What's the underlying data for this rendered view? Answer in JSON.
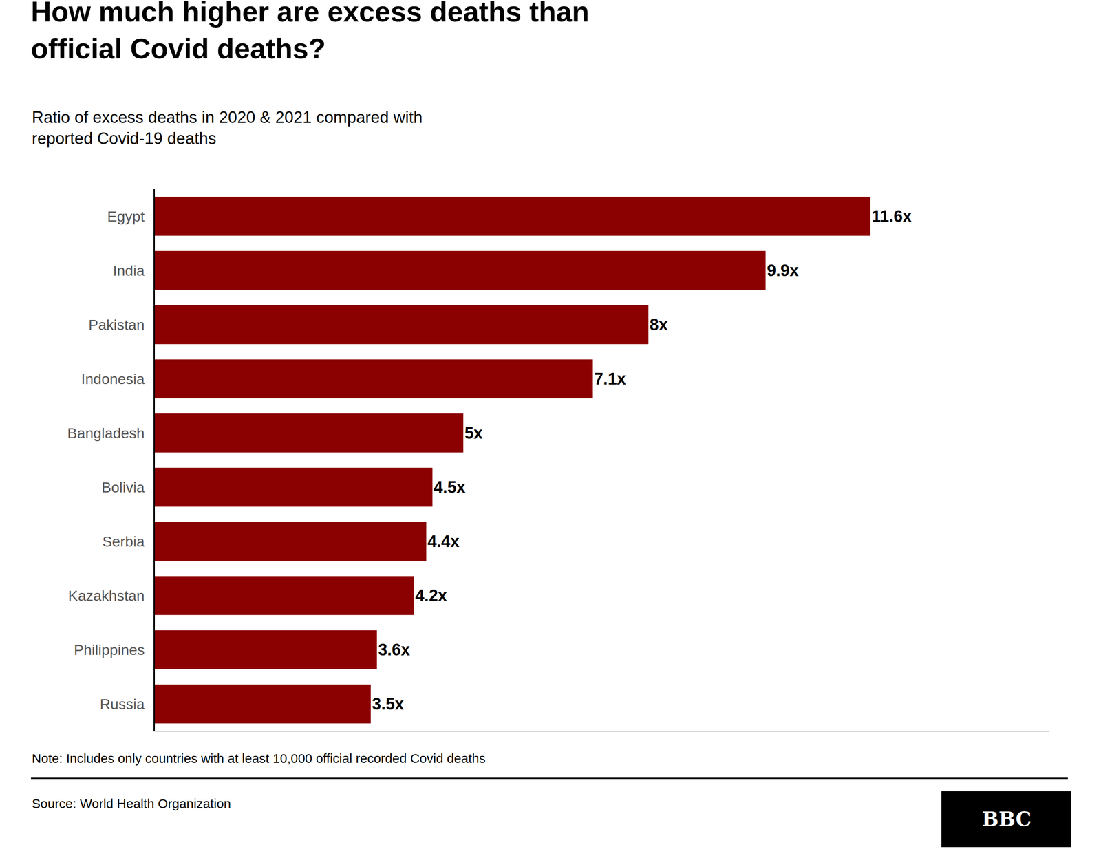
{
  "chart_data": {
    "type": "bar",
    "orientation": "horizontal",
    "title": "How much higher are excess deaths than\nofficial Covid deaths?",
    "subtitle": "Ratio of excess deaths in 2020 & 2021 compared with\nreported Covid-19 deaths",
    "categories": [
      "Egypt",
      "India",
      "Pakistan",
      "Indonesia",
      "Bangladesh",
      "Bolivia",
      "Serbia",
      "Kazakhstan",
      "Philippines",
      "Russia"
    ],
    "values": [
      11.6,
      9.9,
      8.0,
      7.1,
      5.0,
      4.5,
      4.4,
      4.2,
      3.6,
      3.5
    ],
    "value_labels": [
      "11.6x",
      "9.9x",
      "8x",
      "7.1x",
      "5x",
      "4.5x",
      "4.4x",
      "4.2x",
      "3.6x",
      "3.5x"
    ],
    "data_labels": true,
    "color": "#8B0000",
    "xlim": [
      0,
      14.5
    ],
    "grid": false,
    "tick_labels": "y",
    "annotations": [
      "Note: Includes only countries with at least 10,000 official recorded Covid deaths",
      "Source: World Health Organization",
      "BBC"
    ]
  }
}
